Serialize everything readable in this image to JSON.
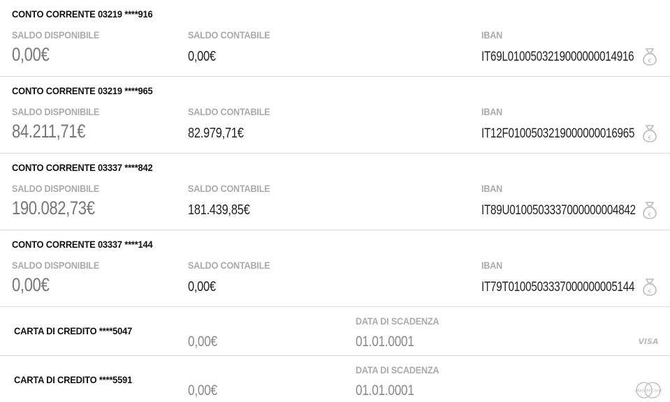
{
  "accounts": [
    {
      "title": "CONTO CORRENTE 03219 ****916",
      "available_label": "SALDO DISPONIBILE",
      "available": "0,00€",
      "accounting_label": "SALDO CONTABILE",
      "accounting": "0,00€",
      "iban_label": "IBAN",
      "iban": "IT69L0100503219000000014916",
      "icon": "money-bag-euro-icon"
    },
    {
      "title": "CONTO CORRENTE 03219 ****965",
      "available_label": "SALDO DISPONIBILE",
      "available": "84.211,71€",
      "accounting_label": "SALDO CONTABILE",
      "accounting": "82.979,71€",
      "iban_label": "IBAN",
      "iban": "IT12F0100503219000000016965",
      "icon": "money-bag-euro-icon"
    },
    {
      "title": "CONTO CORRENTE 03337 ****842",
      "available_label": "SALDO DISPONIBILE",
      "available": "190.082,73€",
      "accounting_label": "SALDO CONTABILE",
      "accounting": "181.439,85€",
      "iban_label": "IBAN",
      "iban": "IT89U0100503337000000004842",
      "icon": "money-bag-euro-icon"
    },
    {
      "title": "CONTO CORRENTE 03337 ****144",
      "available_label": "SALDO DISPONIBILE",
      "available": "0,00€",
      "accounting_label": "SALDO CONTABILE",
      "accounting": "0,00€",
      "iban_label": "IBAN",
      "iban": "IT79T0100503337000000005144",
      "icon": "money-bag-euro-icon"
    }
  ],
  "cards": [
    {
      "title": "CARTA DI CREDITO ****5047",
      "amount": "0,00€",
      "expiry_label": "DATA DI SCADENZA",
      "expiry": "01.01.0001",
      "brand": "VISA",
      "icon": "visa-logo-icon"
    },
    {
      "title": "CARTA DI CREDITO ****5591",
      "amount": "0,00€",
      "expiry_label": "DATA DI SCADENZA",
      "expiry": "01.01.0001",
      "brand": "MasterCard",
      "icon": "mastercard-logo-icon"
    }
  ],
  "colors": {
    "title": "#111111",
    "label": "#aaaaaa",
    "amount_muted": "#777777",
    "amount": "#222222",
    "divider": "#d9d9d9",
    "icon": "#bbbbbb"
  }
}
